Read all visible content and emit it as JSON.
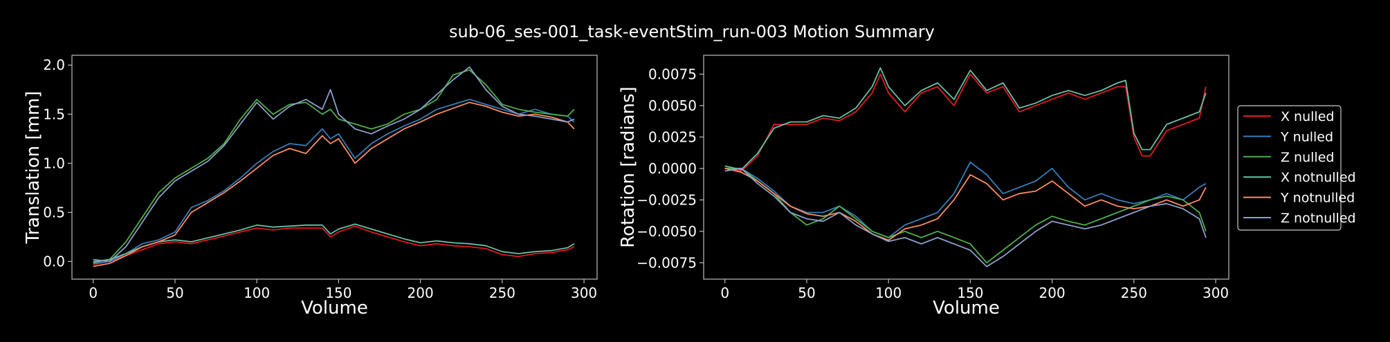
{
  "chart_data": {
    "title": "sub-06_ses-001_task-eventStim_run-003 Motion Summary",
    "n_volumes": 295,
    "colors": {
      "X nulled": "#e41a1c",
      "Y nulled": "#377eb8",
      "Z nulled": "#4daf4a",
      "X notnulled": "#66c2a5",
      "Y notnulled": "#fc8d62",
      "Z notnulled": "#8da0cb"
    },
    "legend": {
      "placement": "outside-right",
      "entries": [
        "X nulled",
        "Y nulled",
        "Z nulled",
        "X notnulled",
        "Y notnulled",
        "Z notnulled"
      ]
    },
    "panels": [
      {
        "type": "line",
        "xlabel": "Volume",
        "ylabel": "Translation [mm]",
        "xlim": [
          -13,
          308
        ],
        "ylim": [
          -0.18,
          2.1
        ],
        "xticks": [
          0,
          50,
          100,
          150,
          200,
          250,
          300
        ],
        "yticks": [
          0.0,
          0.5,
          1.0,
          1.5,
          2.0
        ],
        "ytick_labels": [
          "0.0",
          "0.5",
          "1.0",
          "1.5",
          "2.0"
        ],
        "series": [
          {
            "name": "X nulled",
            "x": [
              0,
              10,
              20,
              30,
              40,
              50,
              60,
              70,
              80,
              90,
              100,
              110,
              120,
              130,
              140,
              145,
              150,
              160,
              170,
              180,
              190,
              200,
              210,
              220,
              230,
              240,
              250,
              260,
              270,
              280,
              290,
              294
            ],
            "y": [
              -0.03,
              0.0,
              0.06,
              0.12,
              0.18,
              0.2,
              0.18,
              0.22,
              0.26,
              0.3,
              0.34,
              0.32,
              0.34,
              0.34,
              0.34,
              0.25,
              0.3,
              0.36,
              0.3,
              0.25,
              0.2,
              0.16,
              0.18,
              0.16,
              0.15,
              0.13,
              0.07,
              0.05,
              0.08,
              0.09,
              0.12,
              0.15
            ]
          },
          {
            "name": "Y nulled",
            "x": [
              0,
              10,
              20,
              30,
              40,
              50,
              60,
              70,
              80,
              90,
              100,
              110,
              120,
              130,
              140,
              145,
              150,
              160,
              170,
              180,
              190,
              200,
              210,
              220,
              230,
              240,
              250,
              260,
              270,
              280,
              290,
              294
            ],
            "y": [
              -0.02,
              0.0,
              0.08,
              0.18,
              0.22,
              0.3,
              0.55,
              0.62,
              0.72,
              0.85,
              1.0,
              1.12,
              1.2,
              1.18,
              1.35,
              1.25,
              1.3,
              1.05,
              1.2,
              1.3,
              1.38,
              1.45,
              1.55,
              1.6,
              1.65,
              1.6,
              1.55,
              1.5,
              1.55,
              1.5,
              1.48,
              1.42
            ]
          },
          {
            "name": "Z nulled",
            "x": [
              0,
              10,
              20,
              30,
              40,
              50,
              60,
              70,
              80,
              90,
              100,
              110,
              120,
              130,
              140,
              145,
              150,
              160,
              170,
              180,
              190,
              200,
              210,
              220,
              230,
              240,
              250,
              260,
              270,
              280,
              290,
              294
            ],
            "y": [
              0.0,
              0.02,
              0.2,
              0.45,
              0.7,
              0.85,
              0.95,
              1.05,
              1.2,
              1.45,
              1.65,
              1.5,
              1.6,
              1.62,
              1.5,
              1.55,
              1.45,
              1.4,
              1.35,
              1.4,
              1.5,
              1.55,
              1.65,
              1.9,
              1.95,
              1.8,
              1.6,
              1.55,
              1.52,
              1.5,
              1.48,
              1.55
            ]
          },
          {
            "name": "X notnulled",
            "x": [
              0,
              10,
              20,
              30,
              40,
              50,
              60,
              70,
              80,
              90,
              100,
              110,
              120,
              130,
              140,
              145,
              150,
              160,
              170,
              180,
              190,
              200,
              210,
              220,
              230,
              240,
              250,
              260,
              270,
              280,
              290,
              294
            ],
            "y": [
              -0.01,
              0.02,
              0.08,
              0.15,
              0.2,
              0.22,
              0.2,
              0.24,
              0.28,
              0.32,
              0.37,
              0.35,
              0.36,
              0.37,
              0.37,
              0.28,
              0.33,
              0.38,
              0.33,
              0.28,
              0.23,
              0.19,
              0.21,
              0.19,
              0.18,
              0.16,
              0.1,
              0.08,
              0.1,
              0.11,
              0.14,
              0.18
            ]
          },
          {
            "name": "Y notnulled",
            "x": [
              0,
              10,
              20,
              30,
              40,
              50,
              60,
              70,
              80,
              90,
              100,
              110,
              120,
              130,
              140,
              145,
              150,
              160,
              170,
              180,
              190,
              200,
              210,
              220,
              230,
              240,
              250,
              260,
              270,
              280,
              290,
              294
            ],
            "y": [
              -0.05,
              -0.02,
              0.06,
              0.15,
              0.2,
              0.27,
              0.5,
              0.6,
              0.7,
              0.82,
              0.95,
              1.08,
              1.15,
              1.1,
              1.28,
              1.2,
              1.25,
              1.0,
              1.15,
              1.25,
              1.35,
              1.42,
              1.5,
              1.56,
              1.62,
              1.58,
              1.52,
              1.48,
              1.5,
              1.47,
              1.42,
              1.35
            ]
          },
          {
            "name": "Z notnulled",
            "x": [
              0,
              10,
              20,
              30,
              40,
              50,
              60,
              70,
              80,
              90,
              100,
              110,
              120,
              130,
              140,
              145,
              150,
              160,
              170,
              180,
              190,
              200,
              210,
              220,
              230,
              240,
              250,
              260,
              270,
              280,
              290,
              294
            ],
            "y": [
              0.02,
              0.0,
              0.15,
              0.4,
              0.65,
              0.82,
              0.92,
              1.02,
              1.18,
              1.4,
              1.62,
              1.45,
              1.58,
              1.65,
              1.55,
              1.75,
              1.5,
              1.35,
              1.3,
              1.38,
              1.45,
              1.55,
              1.7,
              1.85,
              1.98,
              1.75,
              1.58,
              1.5,
              1.48,
              1.45,
              1.42,
              1.45
            ]
          }
        ]
      },
      {
        "type": "line",
        "xlabel": "Volume",
        "ylabel": "Rotation [radians]",
        "xlim": [
          -13,
          308
        ],
        "ylim": [
          -0.0088,
          0.009
        ],
        "xticks": [
          0,
          50,
          100,
          150,
          200,
          250,
          300
        ],
        "yticks": [
          -0.0075,
          -0.005,
          -0.0025,
          0.0,
          0.0025,
          0.005,
          0.0075
        ],
        "ytick_labels": [
          "−0.0075",
          "−0.0050",
          "−0.0025",
          "0.0000",
          "0.0025",
          "0.0050",
          "0.0075"
        ],
        "series": [
          {
            "name": "X nulled",
            "x": [
              0,
              10,
              20,
              30,
              40,
              50,
              60,
              70,
              80,
              90,
              95,
              100,
              110,
              120,
              130,
              140,
              150,
              160,
              170,
              180,
              190,
              200,
              210,
              220,
              230,
              240,
              245,
              250,
              255,
              260,
              270,
              280,
              290,
              294
            ],
            "y": [
              0.0,
              -0.0002,
              0.001,
              0.0035,
              0.0035,
              0.0035,
              0.004,
              0.0038,
              0.0045,
              0.006,
              0.0075,
              0.006,
              0.0045,
              0.006,
              0.0065,
              0.005,
              0.0075,
              0.006,
              0.0065,
              0.0045,
              0.005,
              0.0055,
              0.006,
              0.0055,
              0.006,
              0.0065,
              0.0065,
              0.0025,
              0.001,
              0.001,
              0.003,
              0.0035,
              0.004,
              0.0065
            ]
          },
          {
            "name": "Y nulled",
            "x": [
              0,
              10,
              20,
              30,
              40,
              50,
              60,
              70,
              80,
              90,
              100,
              110,
              120,
              130,
              140,
              150,
              160,
              170,
              180,
              190,
              200,
              210,
              220,
              230,
              240,
              250,
              260,
              270,
              280,
              290,
              294
            ],
            "y": [
              0.0,
              0.0,
              -0.0008,
              -0.0018,
              -0.003,
              -0.0035,
              -0.0035,
              -0.003,
              -0.0038,
              -0.005,
              -0.0055,
              -0.0045,
              -0.004,
              -0.0035,
              -0.002,
              0.0005,
              -0.0005,
              -0.002,
              -0.0015,
              -0.001,
              0.0,
              -0.0015,
              -0.0025,
              -0.002,
              -0.0025,
              -0.0028,
              -0.0025,
              -0.002,
              -0.0025,
              -0.0015,
              -0.0012
            ]
          },
          {
            "name": "Z nulled",
            "x": [
              0,
              10,
              20,
              30,
              40,
              50,
              60,
              70,
              80,
              90,
              100,
              110,
              120,
              130,
              140,
              150,
              160,
              170,
              180,
              190,
              200,
              210,
              220,
              230,
              240,
              250,
              260,
              270,
              280,
              290,
              294
            ],
            "y": [
              0.0,
              0.0,
              -0.001,
              -0.002,
              -0.0035,
              -0.0045,
              -0.004,
              -0.003,
              -0.004,
              -0.005,
              -0.0055,
              -0.005,
              -0.0055,
              -0.005,
              -0.0055,
              -0.006,
              -0.0075,
              -0.0065,
              -0.0055,
              -0.0045,
              -0.0038,
              -0.0042,
              -0.0045,
              -0.004,
              -0.0035,
              -0.003,
              -0.0025,
              -0.0022,
              -0.0025,
              -0.0035,
              -0.005
            ]
          },
          {
            "name": "X notnulled",
            "x": [
              0,
              10,
              20,
              30,
              40,
              50,
              60,
              70,
              80,
              90,
              95,
              100,
              110,
              120,
              130,
              140,
              150,
              160,
              170,
              180,
              190,
              200,
              210,
              220,
              230,
              240,
              245,
              250,
              255,
              260,
              270,
              280,
              290,
              294
            ],
            "y": [
              0.0002,
              -0.0001,
              0.0012,
              0.0032,
              0.0037,
              0.0037,
              0.0042,
              0.004,
              0.0048,
              0.0065,
              0.008,
              0.0065,
              0.005,
              0.0062,
              0.0068,
              0.0055,
              0.0078,
              0.0062,
              0.0068,
              0.0048,
              0.0052,
              0.0058,
              0.0062,
              0.0058,
              0.0062,
              0.0068,
              0.007,
              0.0028,
              0.0015,
              0.0015,
              0.0035,
              0.004,
              0.0045,
              0.006
            ]
          },
          {
            "name": "Y notnulled",
            "x": [
              0,
              10,
              20,
              30,
              40,
              50,
              60,
              70,
              80,
              90,
              100,
              110,
              120,
              130,
              140,
              150,
              160,
              170,
              180,
              190,
              200,
              210,
              220,
              230,
              240,
              250,
              260,
              270,
              280,
              290,
              294
            ],
            "y": [
              0.0,
              -0.0003,
              -0.001,
              -0.002,
              -0.003,
              -0.0036,
              -0.0038,
              -0.0035,
              -0.0042,
              -0.0052,
              -0.0057,
              -0.0048,
              -0.0045,
              -0.004,
              -0.0025,
              -0.0005,
              -0.0012,
              -0.0025,
              -0.002,
              -0.0018,
              -0.001,
              -0.002,
              -0.003,
              -0.0025,
              -0.003,
              -0.0032,
              -0.003,
              -0.0025,
              -0.003,
              -0.0025,
              -0.0015
            ]
          },
          {
            "name": "Z notnulled",
            "x": [
              0,
              10,
              20,
              30,
              40,
              50,
              60,
              70,
              80,
              90,
              100,
              110,
              120,
              130,
              140,
              150,
              160,
              170,
              180,
              190,
              200,
              210,
              220,
              230,
              240,
              250,
              260,
              270,
              280,
              290,
              294
            ],
            "y": [
              -0.0002,
              0.0,
              -0.0012,
              -0.0022,
              -0.0035,
              -0.004,
              -0.0042,
              -0.0035,
              -0.0045,
              -0.0052,
              -0.0058,
              -0.0055,
              -0.006,
              -0.0055,
              -0.006,
              -0.0065,
              -0.0078,
              -0.007,
              -0.006,
              -0.005,
              -0.0042,
              -0.0045,
              -0.0048,
              -0.0045,
              -0.004,
              -0.0035,
              -0.003,
              -0.0028,
              -0.0032,
              -0.004,
              -0.0055
            ]
          }
        ]
      }
    ]
  }
}
